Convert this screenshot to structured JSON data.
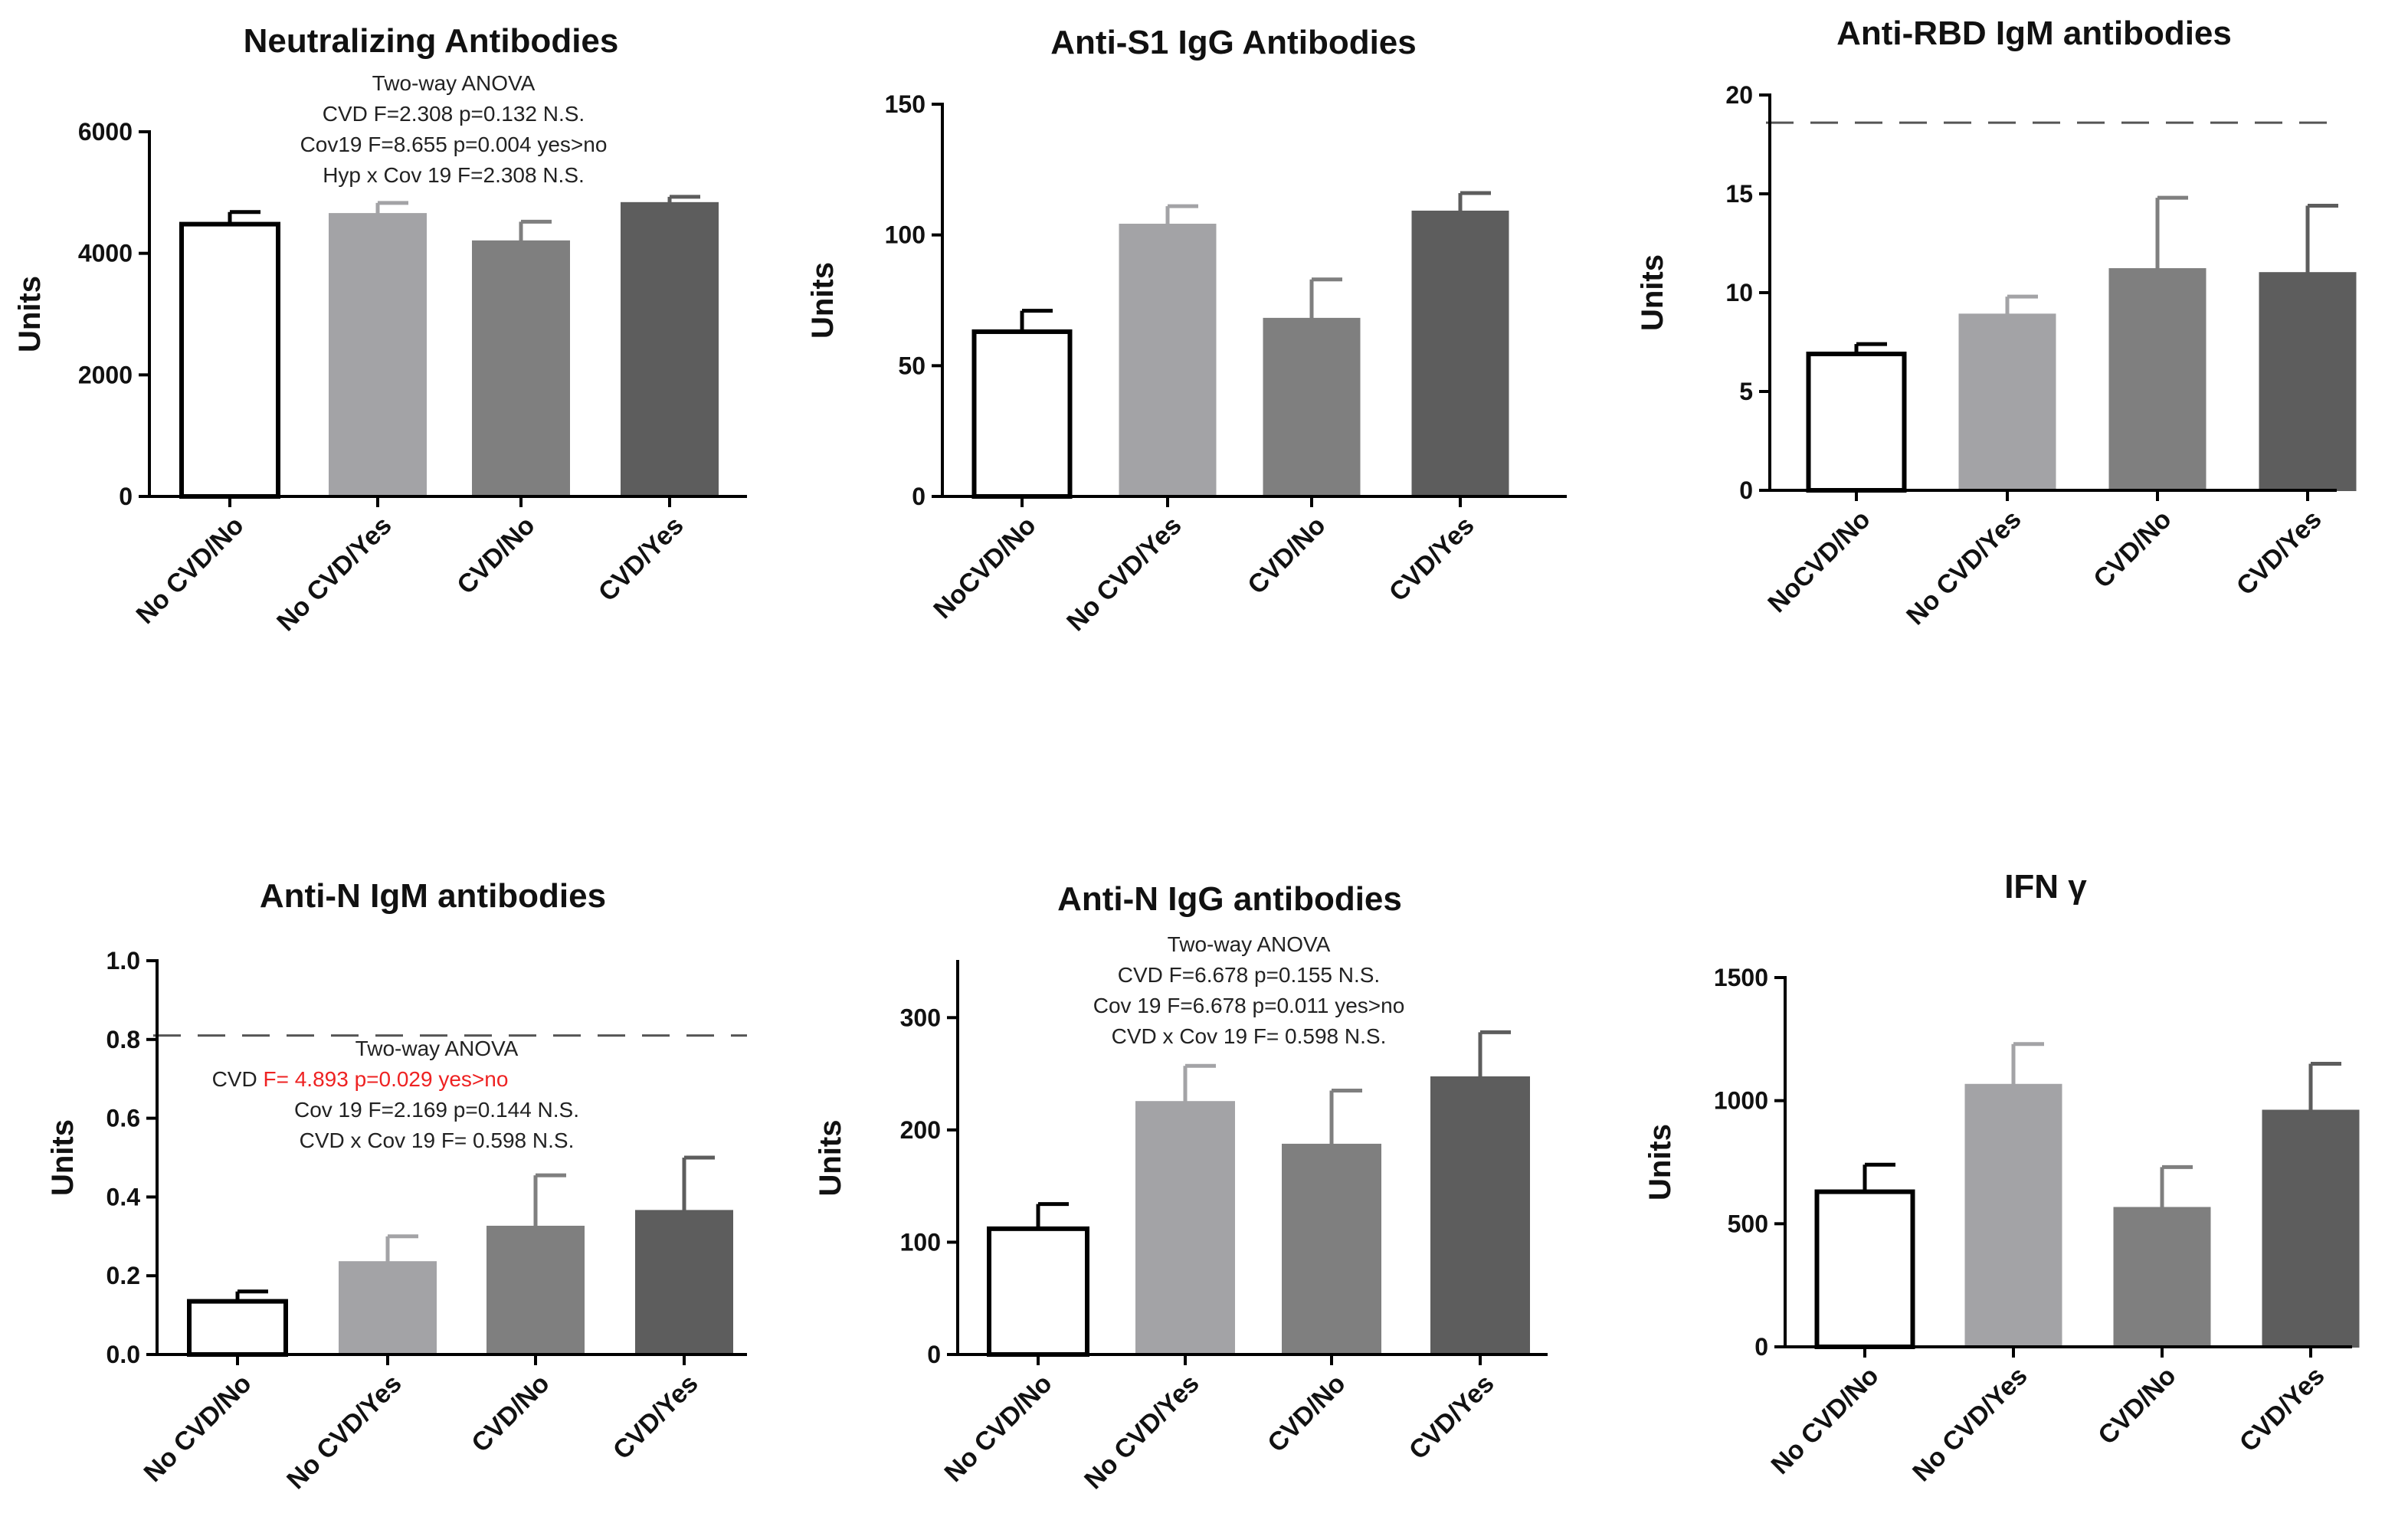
{
  "chart_data": [
    {
      "type": "bar",
      "title": "Neutralizing Antibodies",
      "ylabel": "Units",
      "ylim": [
        0,
        6000
      ],
      "yticks": [
        0,
        2000,
        4000,
        6000
      ],
      "categories": [
        "No CVD/No",
        "No CVD/Yes",
        "CVD/No",
        "CVD/Yes"
      ],
      "values": [
        4480,
        4650,
        4200,
        4830
      ],
      "errors": [
        200,
        180,
        320,
        100
      ],
      "bar_colors": [
        "#ffffff",
        "#a3a3a6",
        "#7f7f7f",
        "#5d5d5d"
      ],
      "annotations": [
        {
          "text": "Two-way ANOVA",
          "color": "#222222"
        },
        {
          "text": "CVD   F=2.308  p=0.132 N.S.",
          "color": "#222222"
        },
        {
          "text": "Cov19 F=8.655   p=0.004  yes>no",
          "color": "#ee2222"
        },
        {
          "text": "Hyp x Cov 19 F=2.308 N.S.",
          "color": "#222222"
        }
      ]
    },
    {
      "type": "bar",
      "title": "Anti-S1 IgG Antibodies",
      "ylabel": "Units",
      "ylim": [
        0,
        150
      ],
      "yticks": [
        0,
        50,
        100,
        150
      ],
      "categories": [
        "NoCVD/No",
        "No CVD/Yes",
        "CVD/No",
        "CVD/Yes"
      ],
      "values": [
        63,
        104,
        68,
        109
      ],
      "errors": [
        8,
        7,
        15,
        7
      ],
      "bar_colors": [
        "#ffffff",
        "#a3a3a6",
        "#7f7f7f",
        "#5d5d5d"
      ],
      "annotations": []
    },
    {
      "type": "bar",
      "title": "Anti-RBD IgM  antibodies",
      "ylabel": "Units",
      "ylim": [
        0,
        20
      ],
      "yticks": [
        0,
        5,
        10,
        15,
        20
      ],
      "reference_line": 18.6,
      "categories": [
        "NoCVD/No",
        "No CVD/Yes",
        "CVD/No",
        "CVD/Yes"
      ],
      "values": [
        6.9,
        8.9,
        11.2,
        11.0
      ],
      "errors": [
        0.5,
        0.9,
        3.6,
        3.4
      ],
      "bar_colors": [
        "#ffffff",
        "#a3a3a6",
        "#7f7f7f",
        "#5d5d5d"
      ],
      "annotations": []
    },
    {
      "type": "bar",
      "title": "Anti-N IgM antibodies",
      "ylabel": "Units",
      "ylim": [
        0,
        1.0
      ],
      "yticks": [
        "0.0",
        "0.2",
        "0.4",
        "0.6",
        "0.8",
        "1.0"
      ],
      "reference_line": 0.81,
      "categories": [
        "No CVD/No",
        "No CVD/Yes",
        "CVD/No",
        "CVD/Yes"
      ],
      "values": [
        0.135,
        0.235,
        0.325,
        0.365
      ],
      "errors": [
        0.025,
        0.065,
        0.13,
        0.135
      ],
      "bar_colors": [
        "#ffffff",
        "#a3a3a6",
        "#7f7f7f",
        "#5d5d5d"
      ],
      "annotations": [
        {
          "text": "Two-way ANOVA",
          "color": "#222222"
        },
        {
          "text": "CVD",
          "color": "#222222",
          "inline_red": "F= 4.893    p=0.029    yes>no"
        },
        {
          "text": "Cov 19 F=2.169 p=0.144 N.S.",
          "color": "#222222"
        },
        {
          "text": "CVD x Cov 19 F= 0.598 N.S.",
          "color": "#222222"
        }
      ]
    },
    {
      "type": "bar",
      "title": "Anti-N IgG antibodies",
      "ylabel": "Units",
      "ylim": [
        0,
        350
      ],
      "yticks": [
        0,
        100,
        200,
        300
      ],
      "categories": [
        "No CVD/No",
        "No CVD/Yes",
        "CVD/No",
        "CVD/Yes"
      ],
      "values": [
        112,
        225,
        187,
        247
      ],
      "errors": [
        22,
        32,
        48,
        40
      ],
      "bar_colors": [
        "#ffffff",
        "#a3a3a6",
        "#7f7f7f",
        "#5d5d5d"
      ],
      "annotations": [
        {
          "text": "Two-way ANOVA",
          "color": "#222222"
        },
        {
          "text": "CVD    F=6.678 p=0.155    N.S.",
          "color": "#222222"
        },
        {
          "text": "Cov 19 F=6.678    p=0.011 yes>no",
          "color": "#ee2222"
        },
        {
          "text": "CVD x Cov 19 F= 0.598 N.S.",
          "color": "#222222"
        }
      ]
    },
    {
      "type": "bar",
      "title": "IFN γ",
      "ylabel": "Units",
      "ylim": [
        0,
        1500
      ],
      "yticks": [
        0,
        500,
        1000,
        1500
      ],
      "categories": [
        "No CVD/No",
        "No CVD/Yes",
        "CVD/No",
        "CVD/Yes"
      ],
      "values": [
        630,
        1065,
        565,
        960
      ],
      "errors": [
        110,
        165,
        165,
        190
      ],
      "bar_colors": [
        "#ffffff",
        "#a3a3a6",
        "#7f7f7f",
        "#5d5d5d"
      ],
      "annotations": []
    }
  ]
}
